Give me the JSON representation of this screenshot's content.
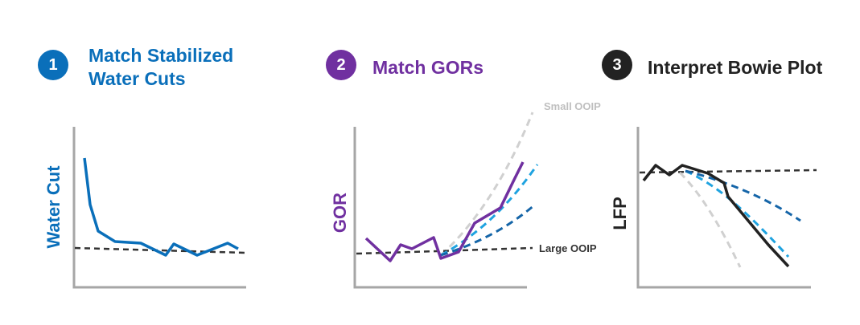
{
  "steps": [
    {
      "number": "1",
      "title_line1": "Match Stabilized",
      "title_line2": "Water Cuts",
      "color": "#0a6fba"
    },
    {
      "number": "2",
      "title": "Match GORs",
      "color": "#7030a0"
    },
    {
      "number": "3",
      "title": "Interpret Bowie Plot",
      "color": "#222222"
    }
  ],
  "panels": {
    "water_cut": {
      "ylabel": "Water Cut",
      "ylabel_color": "#0a6fba",
      "curve_color": "#0a6fba"
    },
    "gor": {
      "ylabel": "GOR",
      "ylabel_color": "#7030a0",
      "curve_color": "#7030a0",
      "label_small": "Small OOIP",
      "label_large": "Large OOIP",
      "small_color": "#bfbfbf",
      "large_color": "#333333"
    },
    "lfp": {
      "ylabel": "LFP",
      "ylabel_color": "#222222",
      "curve_color": "#222222"
    }
  },
  "colors": {
    "axis": "#a6a6a6",
    "dashed_dark": "#333333",
    "dashed_light_blue": "#1fa3e0",
    "dashed_mid_blue": "#1565a8",
    "dashed_gray": "#d0d0d0"
  }
}
